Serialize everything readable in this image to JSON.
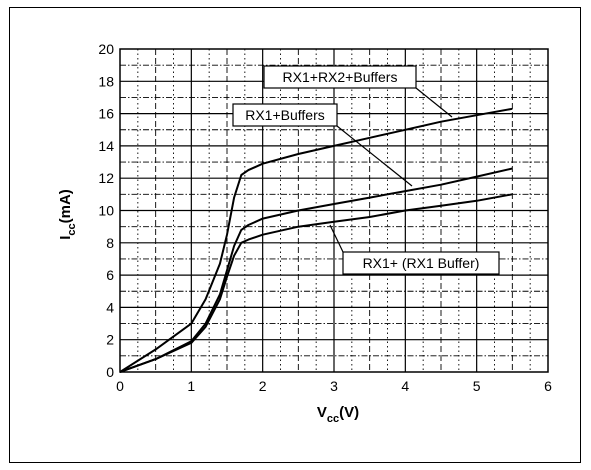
{
  "chart_data": {
    "type": "line",
    "xlabel": {
      "main": "V",
      "sub": "cc",
      "unit": "(V)"
    },
    "ylabel": {
      "main": "I",
      "sub": "cc",
      "unit": "(mA)"
    },
    "xlim": [
      0,
      6
    ],
    "ylim": [
      0,
      20
    ],
    "xticks": [
      0,
      1,
      2,
      3,
      4,
      5,
      6
    ],
    "yticks": [
      0,
      2,
      4,
      6,
      8,
      10,
      12,
      14,
      16,
      18,
      20
    ],
    "grid": true,
    "series": [
      {
        "name": "RX1+RX2+Buffers",
        "x": [
          0,
          0.5,
          1.0,
          1.2,
          1.4,
          1.5,
          1.6,
          1.7,
          1.8,
          2.0,
          2.5,
          3.0,
          3.5,
          4.0,
          4.5,
          5.0,
          5.5
        ],
        "y": [
          0,
          1.4,
          3.0,
          4.5,
          6.7,
          8.5,
          10.8,
          12.2,
          12.5,
          12.9,
          13.5,
          14.0,
          14.5,
          15.0,
          15.5,
          15.9,
          16.3
        ]
      },
      {
        "name": "RX1+Buffers",
        "x": [
          0,
          0.5,
          1.0,
          1.2,
          1.4,
          1.5,
          1.6,
          1.7,
          1.8,
          2.0,
          2.5,
          3.0,
          3.5,
          4.0,
          4.5,
          5.0,
          5.5
        ],
        "y": [
          0,
          0.8,
          1.9,
          3.0,
          4.8,
          6.3,
          7.8,
          8.8,
          9.1,
          9.5,
          10.0,
          10.4,
          10.8,
          11.2,
          11.6,
          12.1,
          12.6
        ]
      },
      {
        "name": "RX1+ (RX1 Buffer)",
        "x": [
          0,
          0.5,
          1.0,
          1.2,
          1.4,
          1.5,
          1.6,
          1.7,
          1.8,
          2.0,
          2.5,
          3.0,
          3.5,
          4.0,
          4.5,
          5.0,
          5.5
        ],
        "y": [
          0,
          0.8,
          1.8,
          2.8,
          4.5,
          5.9,
          7.2,
          8.0,
          8.2,
          8.5,
          9.0,
          9.3,
          9.6,
          10.0,
          10.3,
          10.6,
          11.0
        ]
      }
    ],
    "annotations": [
      {
        "text": "RX1+RX2+Buffers",
        "series": 0
      },
      {
        "text": "RX1+Buffers",
        "series": 1
      },
      {
        "text": "RX1+ (RX1 Buffer)",
        "series": 2
      }
    ]
  }
}
